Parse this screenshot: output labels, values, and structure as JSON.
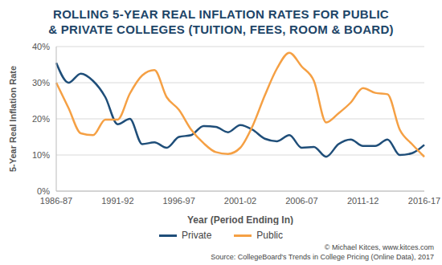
{
  "chart_data": {
    "type": "line",
    "title": [
      "ROLLING 5-YEAR REAL INFLATION RATES FOR PUBLIC",
      "& PRIVATE COLLEGES (TUITION, FEES, ROOM & BOARD)"
    ],
    "x_label": "Year (Period Ending In)",
    "y_label": "5-Year Real Inflation Rate",
    "categories": [
      "1986-87",
      null,
      null,
      null,
      null,
      "1991-92",
      null,
      null,
      null,
      null,
      "1996-97",
      null,
      null,
      null,
      null,
      "2001-02",
      null,
      null,
      null,
      null,
      "2006-07",
      null,
      null,
      null,
      null,
      "2011-12",
      null,
      null,
      null,
      null,
      "2016-17"
    ],
    "series": [
      {
        "name": "Private",
        "color": "#1f4e79",
        "values": [
          35.5,
          30,
          32.5,
          30.5,
          26,
          18.5,
          20,
          13,
          13.5,
          12,
          15,
          15.5,
          18,
          17.8,
          16.3,
          18.3,
          17,
          14.5,
          13.8,
          15.5,
          12,
          12.2,
          9.5,
          13,
          14.3,
          12.5,
          12.5,
          14.3,
          10,
          10.5,
          12.8
        ]
      },
      {
        "name": "Public",
        "color": "#f5a044",
        "values": [
          30,
          23,
          16,
          15.5,
          19.8,
          19.8,
          27,
          32,
          33.5,
          26,
          22.5,
          17,
          13.3,
          10.8,
          10.3,
          12,
          18,
          26.5,
          34,
          38.3,
          34.5,
          30.5,
          19,
          21.5,
          24.5,
          28.5,
          27.2,
          26.8,
          17,
          13,
          9.5
        ]
      }
    ],
    "ylim": [
      0,
      40
    ],
    "yticks": [
      {
        "value": 0,
        "label": "0%"
      },
      {
        "value": 10,
        "label": "10%"
      },
      {
        "value": 20,
        "label": "20%"
      },
      {
        "value": 30,
        "label": "30%"
      },
      {
        "value": 40,
        "label": "40%"
      }
    ],
    "grid": true,
    "legend": "bottom",
    "annotations": [
      "© Michael Kitces, www.kitces.com",
      "Source: CollegeBoard's Trends in College Pricing (Online Data), 2017"
    ]
  }
}
